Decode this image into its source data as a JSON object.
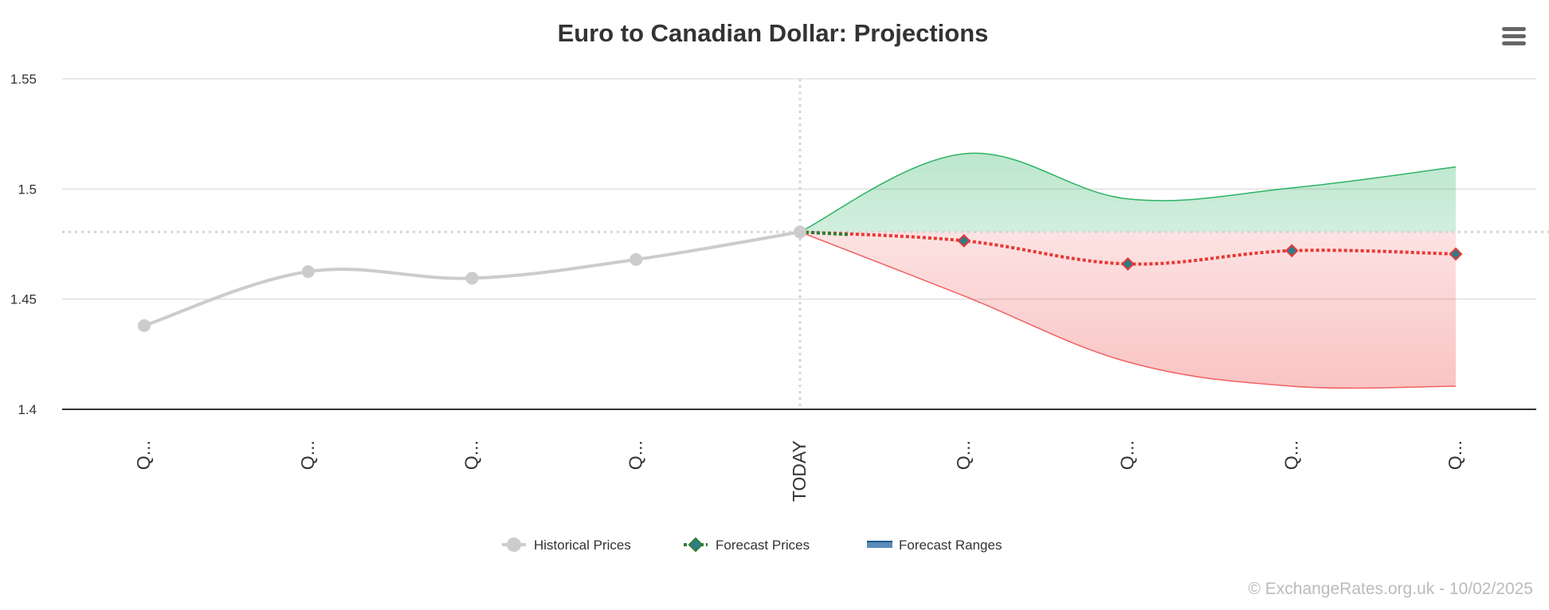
{
  "chart_data": {
    "type": "line",
    "title": "Euro to Canadian Dollar: Projections",
    "categories": [
      "Q...",
      "Q...",
      "Q...",
      "Q...",
      "TODAY",
      "Q...",
      "Q...",
      "Q...",
      "Q..."
    ],
    "ylim": [
      1.4,
      1.55
    ],
    "yticks": [
      1.4,
      1.45,
      1.5,
      1.55
    ],
    "grid": true,
    "legend_position": "bottom",
    "series": [
      {
        "name": "Historical Prices",
        "type": "line",
        "color": "#cccccc",
        "points": [
          {
            "x": 0,
            "y": 1.438
          },
          {
            "x": 1,
            "y": 1.4625
          },
          {
            "x": 2,
            "y": 1.4595
          },
          {
            "x": 3,
            "y": 1.468
          },
          {
            "x": 4,
            "y": 1.4805
          }
        ]
      },
      {
        "name": "Forecast Prices",
        "type": "line",
        "color": "#e53935",
        "marker_fill": "#2e7d8a",
        "points": [
          {
            "x": 4,
            "y": 1.4805
          },
          {
            "x": 5,
            "y": 1.4765
          },
          {
            "x": 6,
            "y": 1.466
          },
          {
            "x": 7,
            "y": 1.472
          },
          {
            "x": 8,
            "y": 1.4705
          }
        ]
      },
      {
        "name": "Forecast Ranges",
        "type": "area-range",
        "color": "#5b8db8",
        "high_color": "#2eb364",
        "low_color": "#f06262",
        "points": [
          {
            "x": 4,
            "low": 1.4805,
            "high": 1.4805
          },
          {
            "x": 5,
            "low": 1.4515,
            "high": 1.516
          },
          {
            "x": 6,
            "low": 1.4215,
            "high": 1.4955
          },
          {
            "x": 7,
            "low": 1.4105,
            "high": 1.5005
          },
          {
            "x": 8,
            "low": 1.4105,
            "high": 1.51
          }
        ]
      }
    ],
    "reference_line_y": 1.4805,
    "credit": "© ExchangeRates.org.uk - 10/02/2025"
  },
  "ui": {
    "menu_icon": "hamburger-menu-icon"
  }
}
